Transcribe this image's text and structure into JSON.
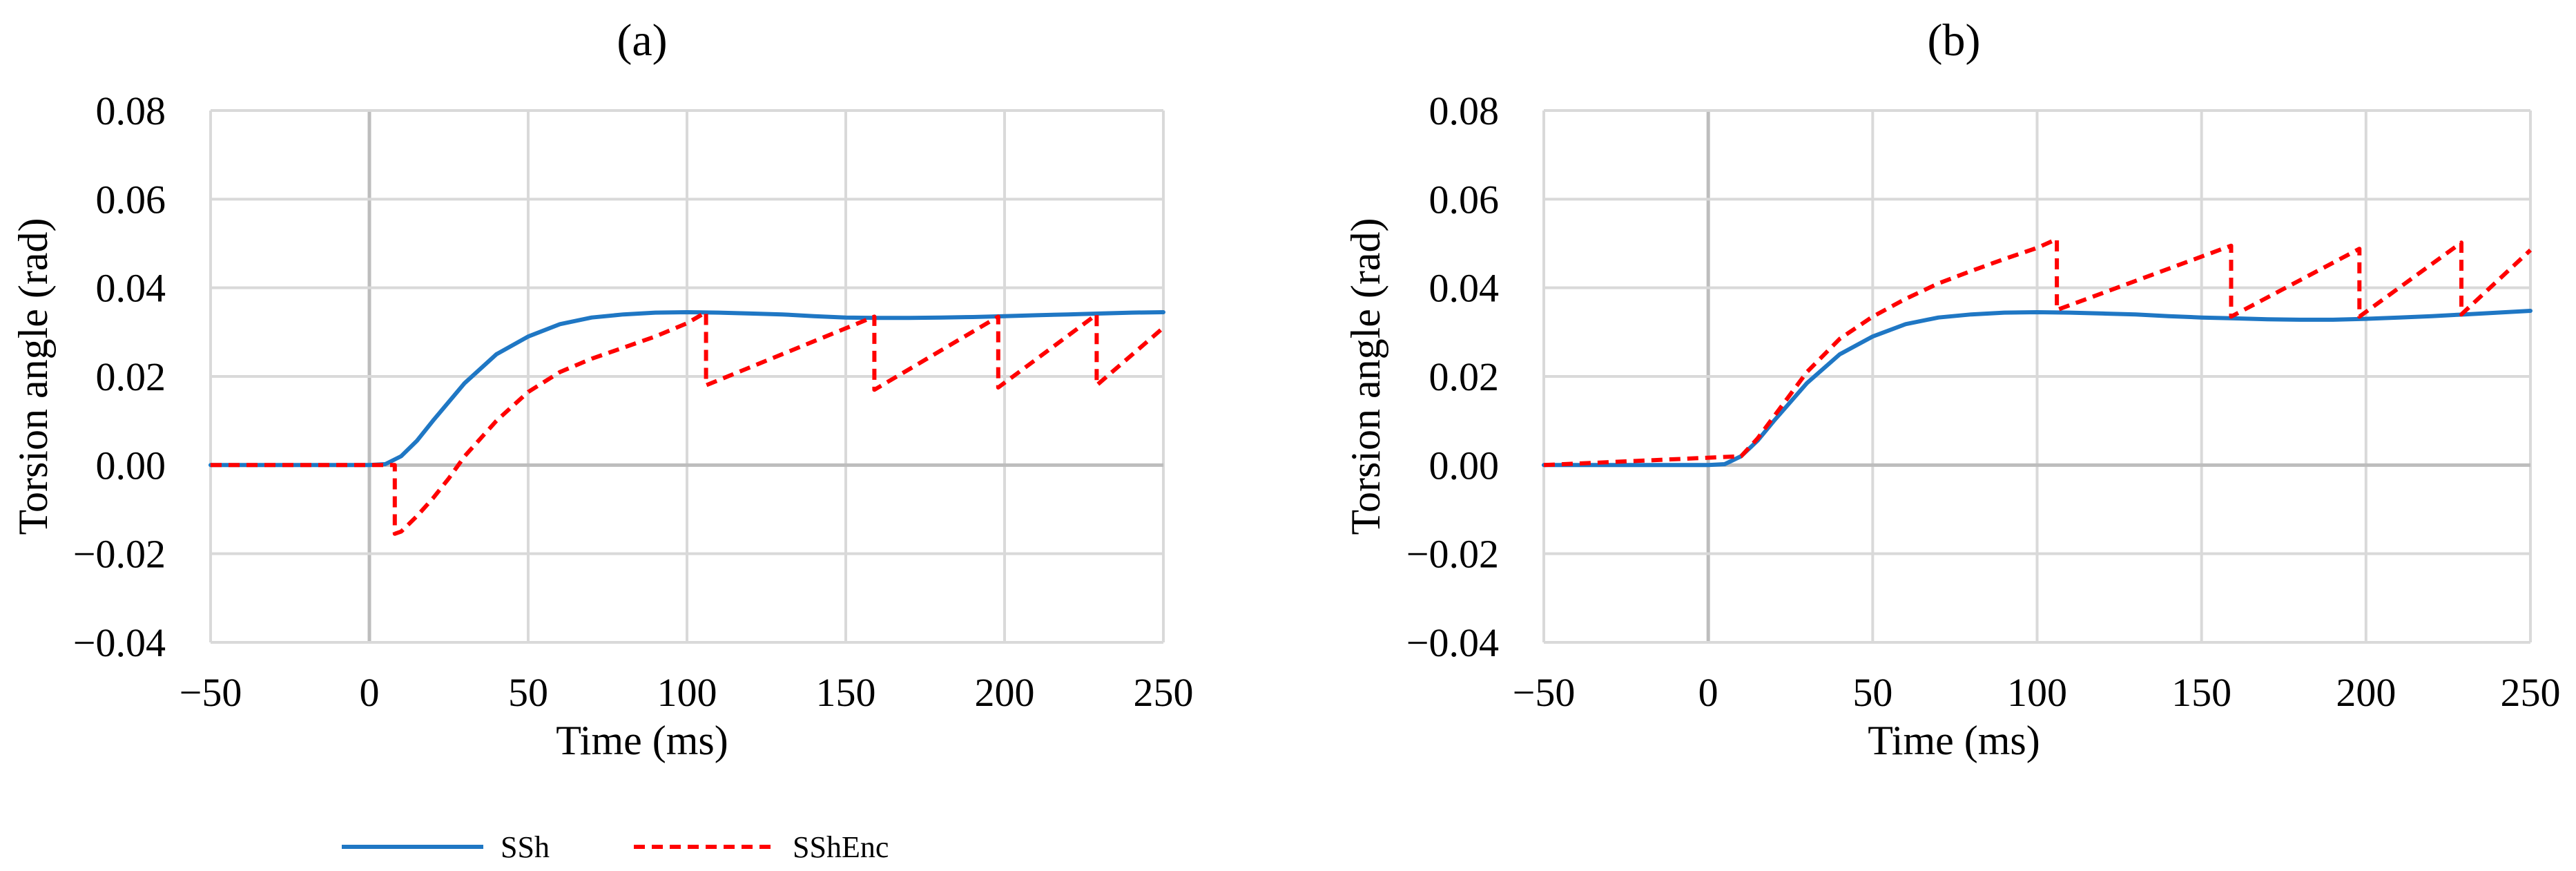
{
  "figure": {
    "legend": [
      {
        "label": "SSh",
        "color": "#1f77c4",
        "dash": "solid"
      },
      {
        "label": "SShEnc",
        "color": "#ff0000",
        "dash": "dashed"
      }
    ],
    "legend_position": "bottom-left"
  },
  "chart_data": [
    {
      "panel_label": "(a)",
      "type": "line",
      "xlabel": "Time (ms)",
      "ylabel": "Torsion angle (rad)",
      "xlim": [
        -50,
        250
      ],
      "ylim": [
        -0.04,
        0.08
      ],
      "xticks": [
        -50,
        0,
        50,
        100,
        150,
        200,
        250
      ],
      "yticks": [
        -0.04,
        -0.02,
        0.0,
        0.02,
        0.04,
        0.06,
        0.08
      ],
      "xtick_labels": [
        "−50",
        "0",
        "50",
        "100",
        "150",
        "200",
        "250"
      ],
      "ytick_labels": [
        "−0.04",
        "−0.02",
        "0.00",
        "0.02",
        "0.04",
        "0.06",
        "0.08"
      ],
      "grid": true,
      "series": [
        {
          "name": "SSh",
          "color": "#1f77c4",
          "dash": "solid",
          "x": [
            -50,
            0,
            5,
            10,
            15,
            20,
            30,
            40,
            50,
            60,
            70,
            80,
            90,
            100,
            110,
            120,
            130,
            140,
            150,
            160,
            170,
            180,
            190,
            200,
            210,
            220,
            230,
            240,
            250
          ],
          "y": [
            0,
            0,
            0.0002,
            0.002,
            0.0055,
            0.01,
            0.0185,
            0.025,
            0.029,
            0.0318,
            0.0333,
            0.034,
            0.0344,
            0.0345,
            0.0344,
            0.0342,
            0.034,
            0.0336,
            0.0333,
            0.0332,
            0.0332,
            0.0333,
            0.0334,
            0.0336,
            0.0338,
            0.034,
            0.0342,
            0.0344,
            0.0345
          ]
        },
        {
          "name": "SShEnc",
          "color": "#ff0000",
          "dash": "dashed",
          "x": [
            -50,
            8,
            8,
            10,
            15,
            20,
            25,
            30,
            40,
            50,
            60,
            70,
            80,
            90,
            100,
            106,
            106,
            159,
            159,
            198,
            198,
            229,
            229,
            250
          ],
          "y": [
            0,
            0,
            -0.0155,
            -0.015,
            -0.0115,
            -0.0075,
            -0.003,
            0.002,
            0.01,
            0.0165,
            0.021,
            0.024,
            0.0265,
            0.029,
            0.032,
            0.0345,
            0.018,
            0.0335,
            0.017,
            0.0335,
            0.0175,
            0.034,
            0.018,
            0.031
          ]
        }
      ]
    },
    {
      "panel_label": "(b)",
      "type": "line",
      "xlabel": "Time (ms)",
      "ylabel": "Torsion angle (rad)",
      "xlim": [
        -50,
        250
      ],
      "ylim": [
        -0.04,
        0.08
      ],
      "xticks": [
        -50,
        0,
        50,
        100,
        150,
        200,
        250
      ],
      "yticks": [
        -0.04,
        -0.02,
        0.0,
        0.02,
        0.04,
        0.06,
        0.08
      ],
      "xtick_labels": [
        "−50",
        "0",
        "50",
        "100",
        "150",
        "200",
        "250"
      ],
      "ytick_labels": [
        "−0.04",
        "−0.02",
        "0.00",
        "0.02",
        "0.04",
        "0.06",
        "0.08"
      ],
      "grid": true,
      "series": [
        {
          "name": "SSh",
          "color": "#1f77c4",
          "dash": "solid",
          "x": [
            -50,
            0,
            5,
            10,
            15,
            20,
            30,
            40,
            50,
            60,
            70,
            80,
            90,
            100,
            110,
            120,
            130,
            140,
            150,
            160,
            170,
            180,
            190,
            200,
            210,
            220,
            230,
            240,
            250
          ],
          "y": [
            0,
            0,
            0.0002,
            0.002,
            0.0055,
            0.01,
            0.0185,
            0.025,
            0.029,
            0.0318,
            0.0333,
            0.034,
            0.0344,
            0.0345,
            0.0344,
            0.0342,
            0.034,
            0.0336,
            0.0333,
            0.0331,
            0.0329,
            0.0328,
            0.0328,
            0.033,
            0.0333,
            0.0336,
            0.034,
            0.0344,
            0.0348
          ]
        },
        {
          "name": "SShEnc",
          "color": "#ff0000",
          "dash": "dashed",
          "x": [
            -50,
            10,
            15,
            20,
            25,
            30,
            40,
            50,
            60,
            70,
            80,
            90,
            100,
            106,
            106,
            159,
            159,
            198,
            198,
            229,
            229,
            250
          ],
          "y": [
            0,
            0.002,
            0.006,
            0.011,
            0.016,
            0.021,
            0.0285,
            0.0335,
            0.0375,
            0.041,
            0.0438,
            0.0465,
            0.049,
            0.051,
            0.035,
            0.0495,
            0.0335,
            0.0488,
            0.0335,
            0.0502,
            0.034,
            0.0485
          ]
        }
      ]
    }
  ]
}
